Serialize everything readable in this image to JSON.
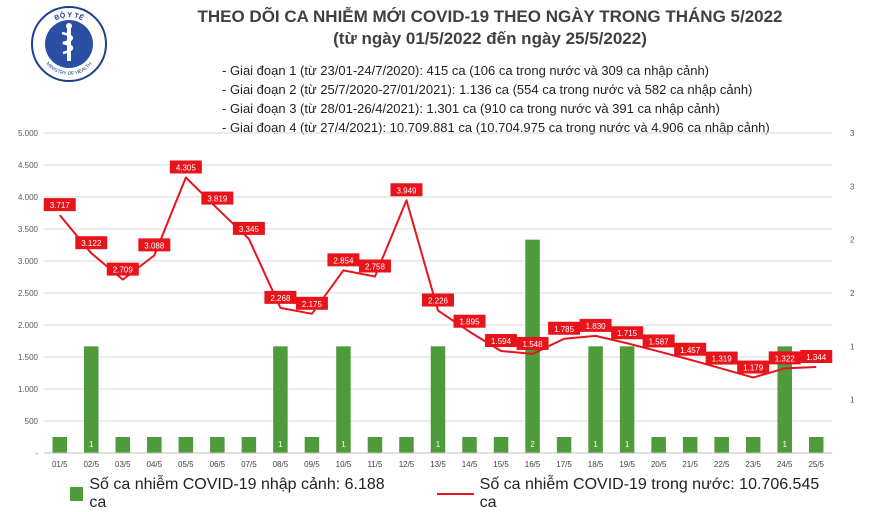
{
  "header": {
    "logo_text_top": "BỘ Y TẾ",
    "logo_text_bottom": "MINISTRY OF HEALTH",
    "title": "THEO DÕI CA NHIỄM MỚI COVID-19 THEO NGÀY TRONG THÁNG 5/2022",
    "subtitle": "(từ ngày 01/5/2022 đến ngày 25/5/2022)"
  },
  "phases": [
    "- Giai đoạn 1 (từ 23/01-24/7/2020): 415 ca (106 ca trong nước và 309 ca nhập cảnh)",
    "- Giai đoạn 2 (từ 25/7/2020-27/01/2021): 1.136 ca (554 ca trong nước và 582 ca nhập cảnh)",
    "- Giai đoạn 3 (từ 28/01-26/4/2021): 1.301 ca (910 ca trong nước và 391 ca nhập cảnh)",
    "- Giai đoạn 4 (từ 27/4/2021): 10.709.881 ca (10.704.975 ca trong nước và 4.906 ca nhập cảnh)"
  ],
  "legend": {
    "bar_label": "Số ca nhiễm COVID-19 nhập cảnh: 6.188 ca",
    "line_label": "Số ca nhiễm COVID-19 trong nước: 10.706.545 ca"
  },
  "colors": {
    "bar": "#4f9a3a",
    "line": "#e8141b",
    "label_box": "#e8141b",
    "grid": "#d9d9d9"
  },
  "chart_data": {
    "type": "bar+line",
    "categories": [
      "01/5",
      "02/5",
      "03/5",
      "04/5",
      "05/5",
      "06/5",
      "07/5",
      "08/5",
      "09/5",
      "10/5",
      "11/5",
      "12/5",
      "13/5",
      "14/5",
      "15/5",
      "16/5",
      "17/5",
      "18/5",
      "19/5",
      "20/5",
      "21/5",
      "22/5",
      "23/5",
      "24/5",
      "25/5"
    ],
    "series": [
      {
        "name": "Số ca nhiễm COVID-19 nhập cảnh: 6.188 ca",
        "type": "bar",
        "axis": "right",
        "values": [
          0,
          1,
          0,
          0,
          0,
          0,
          0,
          1,
          0,
          1,
          0,
          0,
          1,
          0,
          0,
          2,
          0,
          1,
          1,
          0,
          0,
          0,
          0,
          1,
          0
        ],
        "labels": [
          "",
          "1",
          "",
          "",
          "",
          "",
          "",
          "1",
          "",
          "1",
          "",
          "",
          "1",
          "",
          "",
          "2",
          "",
          "1",
          "1",
          "",
          "",
          "",
          "",
          "1",
          ""
        ]
      },
      {
        "name": "Số ca nhiễm COVID-19 trong nước: 10.706.545 ca",
        "type": "line",
        "axis": "left",
        "values": [
          3717,
          3122,
          2709,
          3088,
          4305,
          3819,
          3345,
          2268,
          2175,
          2854,
          2758,
          3949,
          2226,
          1895,
          1594,
          1548,
          1785,
          1830,
          1715,
          1587,
          1457,
          1319,
          1179,
          1322,
          1344
        ],
        "labels": [
          "3.717",
          "3.122",
          "2.709",
          "3.088",
          "4.305",
          "3.819",
          "3.345",
          "2.268",
          "2.175",
          "2.854",
          "2.758",
          "3.949",
          "2.226",
          "1.895",
          "1.594",
          "1.548",
          "1.785",
          "1.830",
          "1.715",
          "1.587",
          "1.457",
          "1.319",
          "1.179",
          "1.322",
          "1.344"
        ]
      }
    ],
    "y_left": {
      "min": 0,
      "max": 5000,
      "ticks": [
        "-",
        "500",
        "1.000",
        "1.500",
        "2.000",
        "2.500",
        "3.000",
        "3.500",
        "4.000",
        "4.500",
        "5.000"
      ]
    },
    "y_right": {
      "min": 0,
      "max": 3,
      "ticks": [
        "1",
        "1",
        "2",
        "2",
        "3",
        "3"
      ]
    },
    "grid": true,
    "legend_position": "bottom"
  }
}
